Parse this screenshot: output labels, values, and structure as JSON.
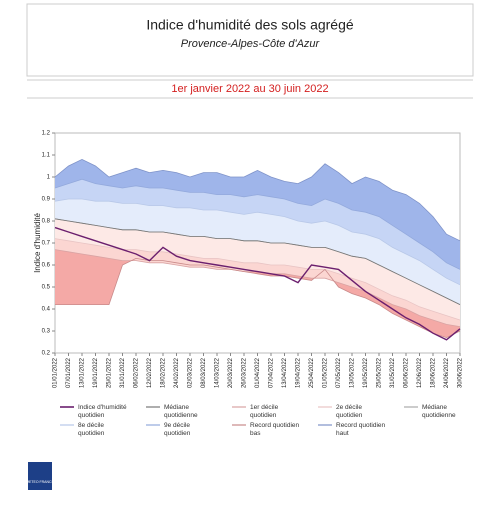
{
  "chart_data": {
    "type": "line",
    "title": "Indice d'humidité des sols agrégé",
    "subtitle": "Provence-Alpes-Côte d'Azur",
    "period": "1er janvier 2022 au 30 juin 2022",
    "y_label": "Indice d'humidité",
    "logo": "METEO FRANCE",
    "categories": [
      "01/01/2022",
      "07/01/2022",
      "13/01/2022",
      "19/01/2022",
      "25/01/2022",
      "31/01/2022",
      "06/02/2022",
      "12/02/2022",
      "18/02/2022",
      "24/02/2022",
      "02/03/2022",
      "08/03/2022",
      "14/03/2022",
      "20/03/2022",
      "26/03/2022",
      "01/04/2022",
      "07/04/2022",
      "13/04/2022",
      "19/04/2022",
      "25/04/2022",
      "01/05/2022",
      "07/05/2022",
      "13/05/2022",
      "19/05/2022",
      "25/05/2022",
      "31/05/2022",
      "06/06/2022",
      "12/06/2022",
      "18/06/2022",
      "24/06/2022",
      "30/06/2022"
    ],
    "ylim": [
      0.2,
      1.2
    ],
    "yticks": [
      0.2,
      0.3,
      0.4,
      0.5,
      0.6,
      0.7,
      0.8,
      0.9,
      1,
      1.1,
      1.2
    ],
    "series": [
      {
        "name": "Indice d'humidité quotidien",
        "color": "#6b1f6e",
        "values": [
          0.77,
          0.75,
          0.73,
          0.71,
          0.69,
          0.67,
          0.65,
          0.62,
          0.68,
          0.64,
          0.62,
          0.61,
          0.6,
          0.59,
          0.58,
          0.57,
          0.56,
          0.55,
          0.52,
          0.6,
          0.59,
          0.58,
          0.53,
          0.48,
          0.44,
          0.4,
          0.36,
          0.33,
          0.29,
          0.26,
          0.31
        ]
      },
      {
        "name": "Médiane quotidienne",
        "color": "#777777",
        "values": [
          0.81,
          0.8,
          0.79,
          0.78,
          0.77,
          0.76,
          0.76,
          0.75,
          0.75,
          0.74,
          0.73,
          0.73,
          0.72,
          0.72,
          0.71,
          0.71,
          0.7,
          0.7,
          0.69,
          0.68,
          0.68,
          0.66,
          0.64,
          0.63,
          0.6,
          0.57,
          0.54,
          0.51,
          0.48,
          0.45,
          0.42
        ]
      },
      {
        "name": "1er décile quotidien",
        "color": "#d9a3a3",
        "values": [
          0.67,
          0.66,
          0.65,
          0.64,
          0.63,
          0.62,
          0.62,
          0.61,
          0.61,
          0.6,
          0.59,
          0.59,
          0.58,
          0.58,
          0.57,
          0.57,
          0.56,
          0.56,
          0.55,
          0.54,
          0.54,
          0.52,
          0.5,
          0.48,
          0.45,
          0.42,
          0.4,
          0.37,
          0.35,
          0.33,
          0.32
        ]
      },
      {
        "name": "2e décile quotidien",
        "color": "#e8c4c4",
        "values": [
          0.72,
          0.71,
          0.7,
          0.69,
          0.68,
          0.67,
          0.67,
          0.66,
          0.66,
          0.65,
          0.64,
          0.63,
          0.63,
          0.62,
          0.61,
          0.61,
          0.6,
          0.6,
          0.59,
          0.58,
          0.58,
          0.56,
          0.54,
          0.52,
          0.49,
          0.46,
          0.44,
          0.41,
          0.39,
          0.37,
          0.35
        ]
      },
      {
        "name": "Médiane quotidienne",
        "color": "#aaaaaa",
        "values": [
          0.81,
          0.8,
          0.79,
          0.78,
          0.77,
          0.76,
          0.76,
          0.75,
          0.75,
          0.74,
          0.73,
          0.73,
          0.72,
          0.72,
          0.71,
          0.71,
          0.7,
          0.7,
          0.69,
          0.68,
          0.68,
          0.66,
          0.64,
          0.63,
          0.6,
          0.57,
          0.54,
          0.51,
          0.48,
          0.45,
          0.42
        ]
      },
      {
        "name": "8e décile quotidien",
        "color": "#b8c8e8",
        "values": [
          0.89,
          0.9,
          0.9,
          0.89,
          0.89,
          0.88,
          0.88,
          0.87,
          0.87,
          0.86,
          0.86,
          0.85,
          0.85,
          0.84,
          0.83,
          0.84,
          0.83,
          0.82,
          0.8,
          0.79,
          0.8,
          0.78,
          0.75,
          0.74,
          0.72,
          0.68,
          0.65,
          0.62,
          0.58,
          0.54,
          0.51
        ]
      },
      {
        "name": "9e décile quotidien",
        "color": "#93a9dc",
        "values": [
          0.95,
          0.97,
          0.99,
          0.97,
          0.96,
          0.95,
          0.96,
          0.95,
          0.95,
          0.94,
          0.93,
          0.93,
          0.92,
          0.92,
          0.91,
          0.92,
          0.91,
          0.9,
          0.88,
          0.87,
          0.9,
          0.88,
          0.85,
          0.84,
          0.82,
          0.78,
          0.74,
          0.7,
          0.66,
          0.61,
          0.58
        ]
      },
      {
        "name": "Record quotidien bas",
        "color": "#c98a8a",
        "values": [
          0.42,
          0.42,
          0.42,
          0.42,
          0.42,
          0.6,
          0.63,
          0.62,
          0.62,
          0.61,
          0.6,
          0.6,
          0.59,
          0.58,
          0.57,
          0.56,
          0.55,
          0.55,
          0.54,
          0.53,
          0.58,
          0.5,
          0.47,
          0.45,
          0.42,
          0.38,
          0.35,
          0.32,
          0.29,
          0.27,
          0.3
        ]
      },
      {
        "name": "Record quotidien haut",
        "color": "#7f93c9",
        "values": [
          1.0,
          1.05,
          1.08,
          1.05,
          1.0,
          1.02,
          1.04,
          1.02,
          1.03,
          1.02,
          1.0,
          1.02,
          1.02,
          1.0,
          1.0,
          1.03,
          1.0,
          0.98,
          0.97,
          1.0,
          1.06,
          1.02,
          0.97,
          1.0,
          0.98,
          0.94,
          0.92,
          0.88,
          0.82,
          0.74,
          0.71
        ]
      }
    ]
  }
}
